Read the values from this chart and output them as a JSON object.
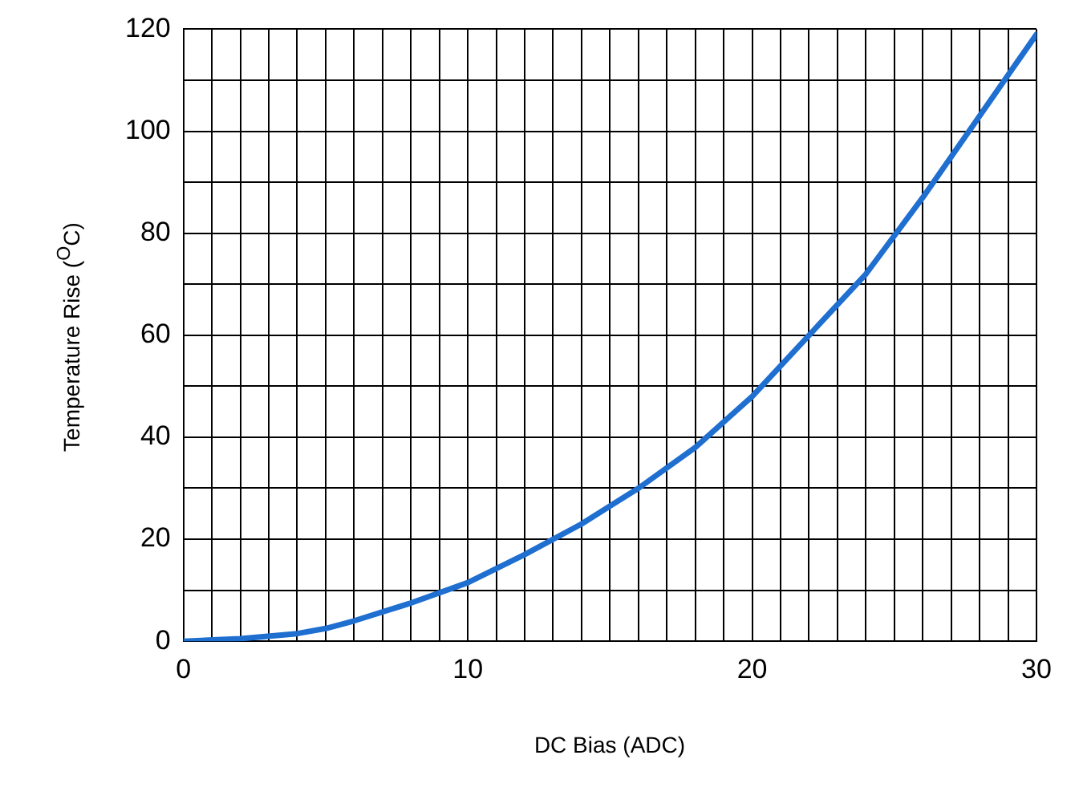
{
  "chart_data": {
    "type": "line",
    "xlabel": "DC Bias (ADC)",
    "ylabel": "Temperature Rise ($^{O}$C)",
    "xlim": [
      0,
      30
    ],
    "ylim": [
      0,
      120
    ],
    "xticks": [
      0,
      {
        "value": 1,
        "label": null
      },
      {
        "value": 2,
        "label": null
      },
      {
        "value": 3,
        "label": null
      },
      {
        "value": 4,
        "label": null
      },
      {
        "value": 5,
        "label": null
      },
      {
        "value": 6,
        "label": null
      },
      {
        "value": 7,
        "label": null
      },
      {
        "value": 8,
        "label": null
      },
      {
        "value": 9,
        "label": null
      },
      10,
      {
        "value": 11,
        "label": null
      },
      {
        "value": 12,
        "label": null
      },
      {
        "value": 13,
        "label": null
      },
      {
        "value": 14,
        "label": null
      },
      {
        "value": 15,
        "label": null
      },
      {
        "value": 16,
        "label": null
      },
      {
        "value": 17,
        "label": null
      },
      {
        "value": 18,
        "label": null
      },
      {
        "value": 19,
        "label": null
      },
      20,
      {
        "value": 21,
        "label": null
      },
      {
        "value": 22,
        "label": null
      },
      {
        "value": 23,
        "label": null
      },
      {
        "value": 24,
        "label": null
      },
      {
        "value": 25,
        "label": null
      },
      {
        "value": 26,
        "label": null
      },
      {
        "value": 27,
        "label": null
      },
      {
        "value": 28,
        "label": null
      },
      {
        "value": 29,
        "label": null
      },
      30
    ],
    "yticks": [
      0,
      {
        "value": 10,
        "label": null
      },
      20,
      {
        "value": 30,
        "label": null
      },
      40,
      {
        "value": 50,
        "label": null
      },
      60,
      {
        "value": 70,
        "label": null
      },
      80,
      {
        "value": 90,
        "label": null
      },
      100,
      {
        "value": 110,
        "label": null
      },
      120
    ],
    "grid": true,
    "legend": false,
    "marker": "none",
    "line_style": "solid",
    "x": [
      0,
      2,
      4,
      5,
      6,
      8,
      10,
      12,
      14,
      16,
      18,
      20,
      22,
      24,
      26,
      28,
      30
    ],
    "series": [
      {
        "color": "#1f6fd1",
        "values": [
          0,
          0.5,
          1.5,
          2.5,
          4,
          7.5,
          11.5,
          17,
          23,
          30,
          38,
          48,
          60,
          72,
          87,
          103,
          119
        ]
      }
    ]
  }
}
